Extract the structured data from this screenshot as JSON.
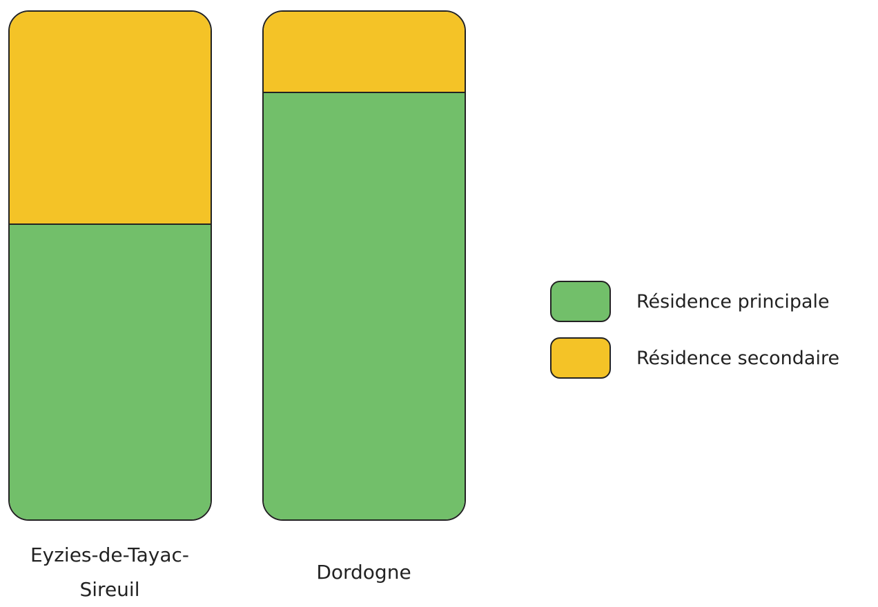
{
  "chart_data": {
    "type": "stacked_bar_100",
    "categories": [
      "Eyzies-de-Tayac-Sireuil",
      "Dordogne"
    ],
    "series": [
      {
        "name": "Résidence principale",
        "color": "#72bf6a",
        "values": [
          58,
          84
        ]
      },
      {
        "name": "Résidence secondaire",
        "color": "#f4c327",
        "values": [
          42,
          16
        ]
      }
    ],
    "legend": "right"
  }
}
